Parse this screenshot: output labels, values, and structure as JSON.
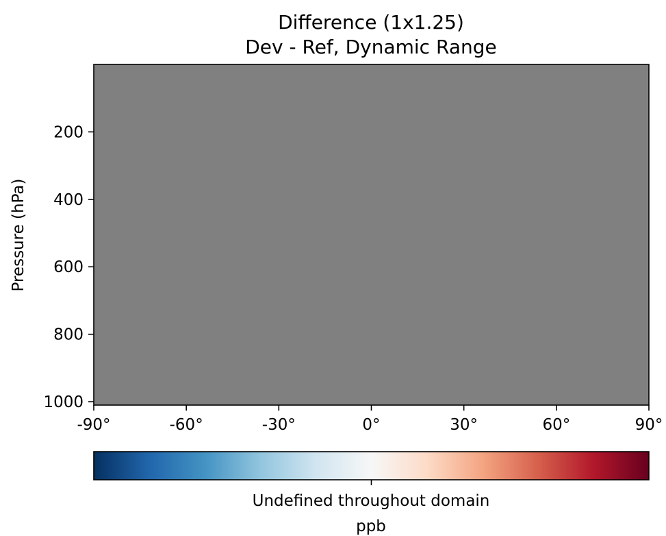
{
  "chart_data": {
    "type": "heatmap",
    "title_line1": "Difference (1x1.25)",
    "title_line2": "Dev - Ref, Dynamic Range",
    "xlabel": "",
    "ylabel": "Pressure (hPa)",
    "x_ticks": [
      -90,
      -60,
      -30,
      0,
      30,
      60,
      90
    ],
    "x_tick_labels": [
      "-90°",
      "-60°",
      "-30°",
      "0°",
      "30°",
      "60°",
      "90°"
    ],
    "xlim": [
      -90,
      90
    ],
    "y_ticks": [
      200,
      400,
      600,
      800,
      1000
    ],
    "y_tick_labels": [
      "200",
      "400",
      "600",
      "800",
      "1000"
    ],
    "ylim": [
      1010,
      0
    ],
    "field_color": "#808080",
    "field_state": "undefined (no finite values)",
    "colorbar": {
      "colormap": "RdBu_r",
      "stops": [
        "#053061",
        "#2166ac",
        "#4393c3",
        "#92c5de",
        "#d1e5f0",
        "#f7f7f7",
        "#fddbc7",
        "#f4a582",
        "#d6604d",
        "#b2182b",
        "#67001f"
      ],
      "tick_positions": [
        0.5
      ],
      "tick_text": "Undefined throughout domain",
      "units": "ppb"
    },
    "grid": false
  }
}
